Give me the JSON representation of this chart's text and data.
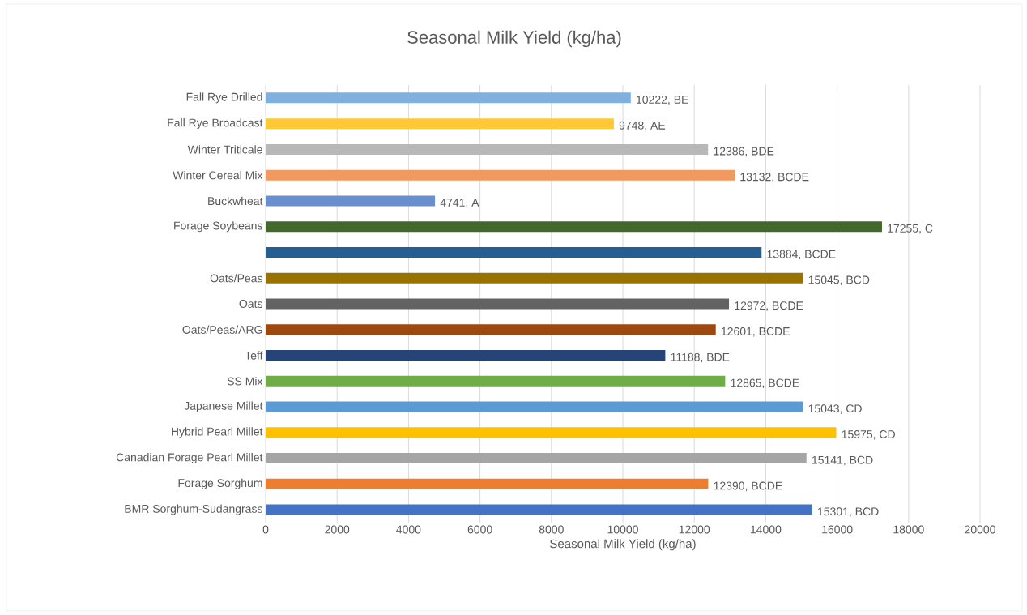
{
  "chart_data": {
    "type": "bar",
    "orientation": "horizontal",
    "title": "Seasonal Milk Yield (kg/ha)",
    "xlabel": "Seasonal Milk Yield (kg/ha)",
    "categories": [
      "Fall Rye Drilled",
      "Fall Rye Broadcast",
      "Winter Triticale",
      "Winter Cereal Mix",
      "Buckwheat",
      "Forage Soybeans",
      null,
      "Oats/Peas",
      "Oats",
      "Oats/Peas/ARG",
      "Teff",
      "SS Mix",
      "Japanese Millet",
      "Hybrid Pearl Millet",
      "Canadian Forage Pearl Millet",
      "Forage Sorghum",
      "BMR Sorghum-Sudangrass"
    ],
    "values": [
      10222,
      9748,
      12386,
      13132,
      4741,
      17255,
      13884,
      15045,
      12972,
      12601,
      11188,
      12865,
      15043,
      15975,
      15141,
      12390,
      15301
    ],
    "value_labels": [
      "10222, BE",
      "9748, AE",
      "12386, BDE",
      "13132, BCDE",
      "4741, A",
      "17255, C",
      "13884, BCDE",
      "15045, BCD",
      "12972, BCDE",
      "12601, BCDE",
      "11188, BDE",
      "12865, BCDE",
      "15043, CD",
      "15975, CD",
      "15141, BCD",
      "12390, BCDE",
      "15301, BCD"
    ],
    "colors": [
      "#7fb0de",
      "#ffc935",
      "#b8b8b8",
      "#f19a5f",
      "#6a8fcf",
      "#43682b",
      "#255e91",
      "#997300",
      "#636363",
      "#9e480e",
      "#264478",
      "#70ad47",
      "#5b9bd5",
      "#ffc000",
      "#a5a5a5",
      "#ed7d31",
      "#4472c4"
    ],
    "xlim": [
      0,
      20000
    ],
    "xticks": [
      0,
      2000,
      4000,
      6000,
      8000,
      10000,
      12000,
      14000,
      16000,
      18000,
      20000
    ],
    "grid": "x"
  }
}
